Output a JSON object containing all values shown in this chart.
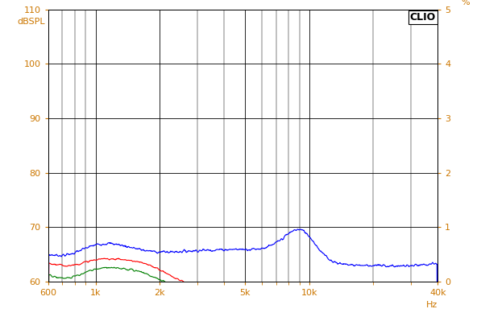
{
  "ylabel_left": "dBSPL",
  "ylabel_right": "%",
  "xlabel": "Hz",
  "clio_label": "CLIO",
  "ylim_left": [
    60,
    110
  ],
  "ylim_right": [
    0,
    5
  ],
  "xlim": [
    600,
    40000
  ],
  "yticks_left": [
    60,
    70,
    80,
    90,
    100,
    110
  ],
  "yticks_right": [
    0,
    1,
    2,
    3,
    4,
    5
  ],
  "xtick_labels": [
    "600",
    "1k",
    "2k",
    "5k",
    "10k",
    "40k"
  ],
  "xtick_values": [
    600,
    1000,
    2000,
    5000,
    10000,
    40000
  ],
  "bg_color": "#ffffff",
  "grid_color": "#000000",
  "label_color": "#cc7700",
  "line_colors": [
    "#0000ff",
    "#ff0000",
    "#008000"
  ],
  "line_width": 0.8
}
